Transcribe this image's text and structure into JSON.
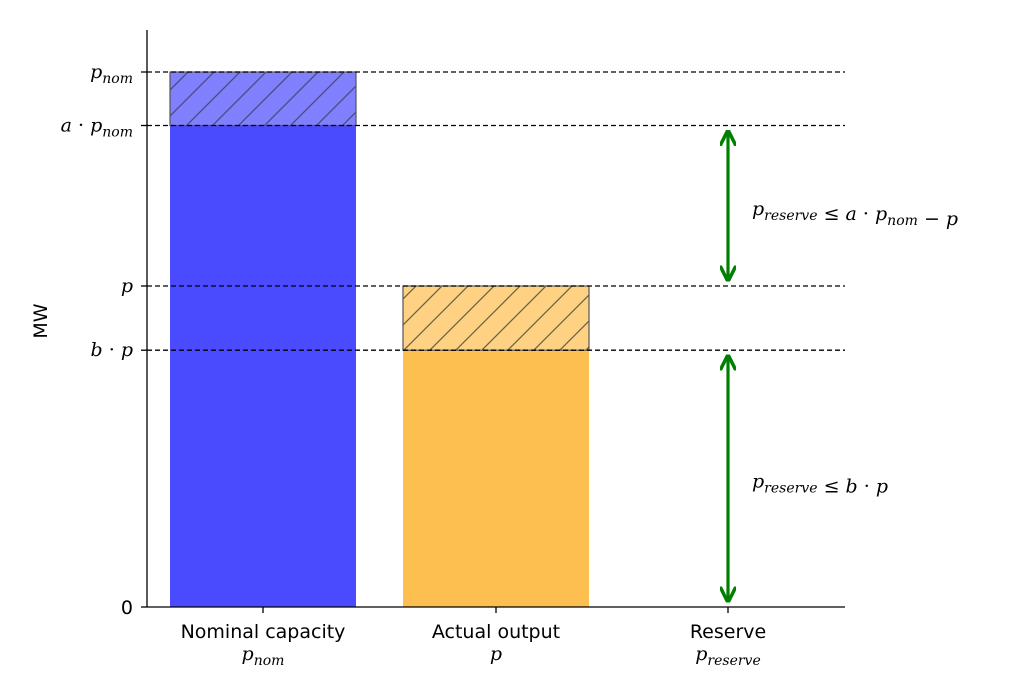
{
  "chart_data": {
    "type": "bar",
    "title": "",
    "ylabel": "MW",
    "xlabel": "",
    "categories": [
      {
        "label": "Nominal capacity",
        "symbol": "p",
        "subscript": "nom"
      },
      {
        "label": "Actual output",
        "symbol": "p",
        "subscript": ""
      },
      {
        "label": "Reserve",
        "symbol": "p",
        "subscript": "reserve"
      }
    ],
    "bars": [
      {
        "category": "Nominal capacity",
        "base": 0,
        "top": 0.9,
        "color": "#4a4aff"
      },
      {
        "category": "Nominal capacity",
        "base": 0.9,
        "top": 1.0,
        "color": "#8080ff",
        "hatch": true
      },
      {
        "category": "Actual output",
        "base": 0,
        "top": 0.48,
        "color": "#fdbf50"
      },
      {
        "category": "Actual output",
        "base": 0.48,
        "top": 0.6,
        "color": "#fed282",
        "hatch": true
      }
    ],
    "ylim": [
      0,
      1.08
    ],
    "y_ticks": [
      {
        "value": 0,
        "label": "0"
      },
      {
        "value": 0.48,
        "label": "b · p"
      },
      {
        "value": 0.6,
        "label": "p"
      },
      {
        "value": 0.9,
        "label": "a · p_nom"
      },
      {
        "value": 1.0,
        "label": "p_nom"
      }
    ],
    "reference_lines": [
      1.0,
      0.9,
      0.6,
      0.48
    ],
    "annotations": [
      {
        "category": "Reserve",
        "from": 0.9,
        "to": 0.6,
        "text": "p_reserve ≤ a · p_nom − p",
        "color": "#008000"
      },
      {
        "category": "Reserve",
        "from": 0.48,
        "to": 0,
        "text": "p_reserve ≤ b · p",
        "color": "#008000"
      }
    ],
    "grid": false,
    "legend": "none"
  }
}
